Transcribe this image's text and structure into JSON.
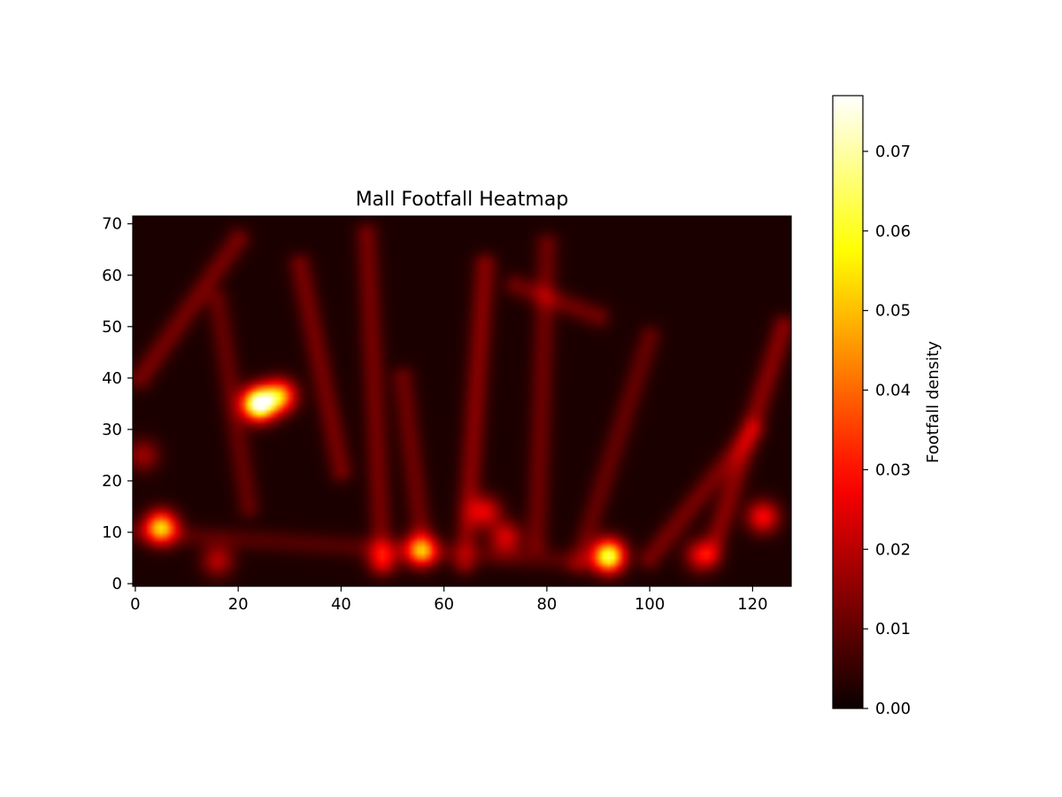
{
  "chart_data": {
    "type": "heatmap",
    "title": "Mall Footfall Heatmap",
    "xlabel": "",
    "ylabel": "",
    "xlim": [
      -0.5,
      127.5
    ],
    "ylim": [
      -0.5,
      71.5
    ],
    "x_ticks": [
      0,
      20,
      40,
      60,
      80,
      100,
      120
    ],
    "y_ticks": [
      0,
      10,
      20,
      30,
      40,
      50,
      60,
      70
    ],
    "colormap": "hot",
    "colorbar": {
      "label": "Footfall density",
      "range": [
        0,
        0.077
      ],
      "ticks": [
        0.0,
        0.01,
        0.02,
        0.03,
        0.04,
        0.05,
        0.06,
        0.07
      ],
      "tick_labels": [
        "0.00",
        "0.01",
        "0.02",
        "0.03",
        "0.04",
        "0.05",
        "0.06",
        "0.07"
      ]
    },
    "hotspots": [
      {
        "x": 24,
        "y": 35,
        "peak": 0.077
      },
      {
        "x": 28,
        "y": 36.5,
        "peak": 0.045
      },
      {
        "x": 5,
        "y": 11,
        "peak": 0.048
      },
      {
        "x": 92,
        "y": 5.5,
        "peak": 0.058
      },
      {
        "x": 55.5,
        "y": 6.5,
        "peak": 0.036
      },
      {
        "x": 110,
        "y": 5.5,
        "peak": 0.022
      },
      {
        "x": 122,
        "y": 13,
        "peak": 0.026
      },
      {
        "x": 68,
        "y": 14,
        "peak": 0.022
      },
      {
        "x": 72,
        "y": 9,
        "peak": 0.021
      },
      {
        "x": 48,
        "y": 5,
        "peak": 0.016
      },
      {
        "x": 16,
        "y": 4.5,
        "peak": 0.017
      },
      {
        "x": 1.5,
        "y": 25,
        "peak": 0.014
      }
    ],
    "paths": [
      {
        "from": [
          1,
          40
        ],
        "to": [
          20,
          67
        ],
        "peak": 0.01
      },
      {
        "from": [
          16,
          55
        ],
        "to": [
          22,
          15
        ],
        "peak": 0.008
      },
      {
        "from": [
          32,
          62
        ],
        "to": [
          40,
          22
        ],
        "peak": 0.01
      },
      {
        "from": [
          45,
          68
        ],
        "to": [
          48,
          4
        ],
        "peak": 0.01
      },
      {
        "from": [
          64,
          4
        ],
        "to": [
          68,
          62
        ],
        "peak": 0.012
      },
      {
        "from": [
          52,
          40
        ],
        "to": [
          56,
          6
        ],
        "peak": 0.009
      },
      {
        "from": [
          74,
          58
        ],
        "to": [
          90,
          52
        ],
        "peak": 0.009
      },
      {
        "from": [
          80,
          66
        ],
        "to": [
          78,
          8
        ],
        "peak": 0.009
      },
      {
        "from": [
          86,
          4
        ],
        "to": [
          100,
          48
        ],
        "peak": 0.008
      },
      {
        "from": [
          100,
          5
        ],
        "to": [
          120,
          30
        ],
        "peak": 0.01
      },
      {
        "from": [
          112,
          6
        ],
        "to": [
          126,
          50
        ],
        "peak": 0.012
      },
      {
        "from": [
          0,
          10
        ],
        "to": [
          92,
          4
        ],
        "peak": 0.006
      }
    ],
    "background_level": 0.002
  }
}
